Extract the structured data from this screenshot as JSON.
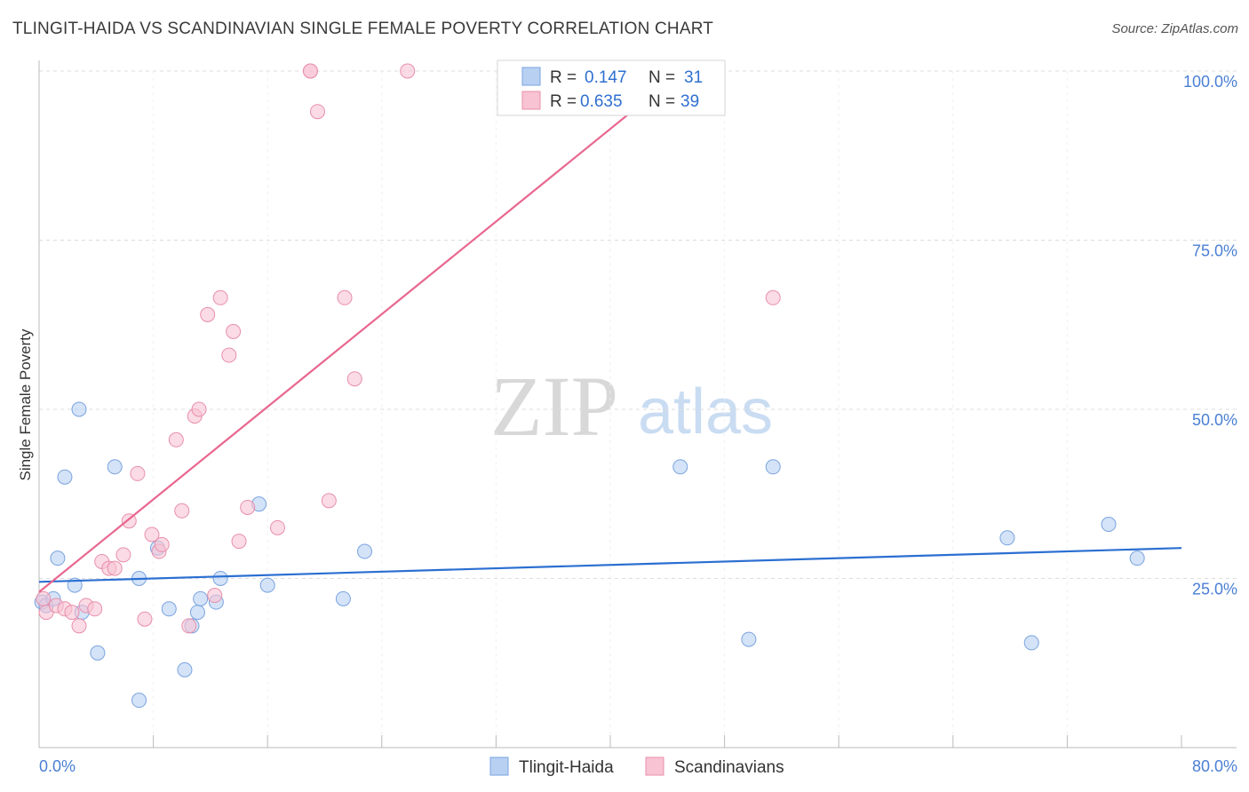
{
  "header": {
    "title": "TLINGIT-HAIDA VS SCANDINAVIAN SINGLE FEMALE POVERTY CORRELATION CHART",
    "source": "Source: ZipAtlas.com"
  },
  "watermark": {
    "zip": "ZIP",
    "atlas": "atlas"
  },
  "colors": {
    "blue_fill": "#b8d0f2",
    "blue_stroke": "#7aa3e0",
    "blue_line": "#2b6fd1",
    "pink_fill": "#f8c3d3",
    "pink_stroke": "#e88fab",
    "pink_line": "#e8678f",
    "grid": "#dddddd",
    "tick_text": "#4a7fd4"
  },
  "stats_legend": {
    "rows": [
      {
        "r_label": "R = ",
        "r_value": "0.147",
        "n_label": "N = ",
        "n_value": "31",
        "series": "blue"
      },
      {
        "r_label": "R = ",
        "r_value": "0.635",
        "n_label": "N = ",
        "n_value": "39",
        "series": "pink"
      }
    ]
  },
  "bottom_legend": {
    "items": [
      {
        "label": "Tlingit-Haida",
        "series": "blue"
      },
      {
        "label": "Scandinavians",
        "series": "pink"
      }
    ]
  },
  "chart_data": {
    "type": "scatter",
    "title": "TLINGIT-HAIDA VS SCANDINAVIAN SINGLE FEMALE POVERTY CORRELATION CHART",
    "xlabel": "",
    "ylabel": "Single Female Poverty",
    "xlim": [
      0,
      80
    ],
    "ylim": [
      0,
      105
    ],
    "x_tick_labels": [
      "0.0%",
      "80.0%"
    ],
    "y_ticks": [
      25,
      50,
      75,
      100
    ],
    "y_tick_labels": [
      "25.0%",
      "50.0%",
      "75.0%",
      "100.0%"
    ],
    "grid": true,
    "series": [
      {
        "name": "Tlingit-Haida",
        "color": "blue",
        "trend": {
          "x": [
            0,
            80
          ],
          "y": [
            24.5,
            29.5
          ]
        },
        "points": [
          {
            "x": 0.2,
            "y": 21.5
          },
          {
            "x": 0.5,
            "y": 21
          },
          {
            "x": 1.0,
            "y": 22
          },
          {
            "x": 1.3,
            "y": 28
          },
          {
            "x": 1.8,
            "y": 40
          },
          {
            "x": 2.5,
            "y": 24
          },
          {
            "x": 2.8,
            "y": 50
          },
          {
            "x": 3.0,
            "y": 20
          },
          {
            "x": 4.1,
            "y": 14
          },
          {
            "x": 5.3,
            "y": 41.5
          },
          {
            "x": 7.0,
            "y": 7
          },
          {
            "x": 7.0,
            "y": 25
          },
          {
            "x": 8.3,
            "y": 29.5
          },
          {
            "x": 9.1,
            "y": 20.5
          },
          {
            "x": 10.2,
            "y": 11.5
          },
          {
            "x": 10.7,
            "y": 18
          },
          {
            "x": 11.1,
            "y": 20
          },
          {
            "x": 11.3,
            "y": 22
          },
          {
            "x": 12.4,
            "y": 21.5
          },
          {
            "x": 12.7,
            "y": 25
          },
          {
            "x": 15.4,
            "y": 36
          },
          {
            "x": 16.0,
            "y": 24
          },
          {
            "x": 21.3,
            "y": 22
          },
          {
            "x": 22.8,
            "y": 29
          },
          {
            "x": 44.9,
            "y": 41.5
          },
          {
            "x": 49.7,
            "y": 16
          },
          {
            "x": 51.4,
            "y": 41.5
          },
          {
            "x": 67.8,
            "y": 31
          },
          {
            "x": 69.5,
            "y": 15.5
          },
          {
            "x": 74.9,
            "y": 33
          },
          {
            "x": 76.9,
            "y": 28
          }
        ]
      },
      {
        "name": "Scandinavians",
        "color": "pink",
        "trend": {
          "x": [
            0,
            45
          ],
          "y": [
            23,
            100
          ]
        },
        "points": [
          {
            "x": 0.3,
            "y": 22
          },
          {
            "x": 0.5,
            "y": 20
          },
          {
            "x": 1.2,
            "y": 21
          },
          {
            "x": 1.8,
            "y": 20.5
          },
          {
            "x": 2.3,
            "y": 20
          },
          {
            "x": 2.8,
            "y": 18
          },
          {
            "x": 3.3,
            "y": 21
          },
          {
            "x": 3.9,
            "y": 20.5
          },
          {
            "x": 4.4,
            "y": 27.5
          },
          {
            "x": 4.9,
            "y": 26.5
          },
          {
            "x": 5.3,
            "y": 26.5
          },
          {
            "x": 5.9,
            "y": 28.5
          },
          {
            "x": 6.3,
            "y": 33.5
          },
          {
            "x": 6.9,
            "y": 40.5
          },
          {
            "x": 7.4,
            "y": 19
          },
          {
            "x": 7.9,
            "y": 31.5
          },
          {
            "x": 8.4,
            "y": 29
          },
          {
            "x": 8.6,
            "y": 30
          },
          {
            "x": 9.6,
            "y": 45.5
          },
          {
            "x": 10.0,
            "y": 35
          },
          {
            "x": 10.5,
            "y": 18
          },
          {
            "x": 10.9,
            "y": 49
          },
          {
            "x": 11.2,
            "y": 50
          },
          {
            "x": 11.8,
            "y": 64
          },
          {
            "x": 12.3,
            "y": 22.5
          },
          {
            "x": 12.7,
            "y": 66.5
          },
          {
            "x": 13.3,
            "y": 58
          },
          {
            "x": 13.6,
            "y": 61.5
          },
          {
            "x": 14.0,
            "y": 30.5
          },
          {
            "x": 14.6,
            "y": 35.5
          },
          {
            "x": 16.7,
            "y": 32.5
          },
          {
            "x": 19.0,
            "y": 100
          },
          {
            "x": 19.0,
            "y": 100
          },
          {
            "x": 19.5,
            "y": 94
          },
          {
            "x": 20.3,
            "y": 36.5
          },
          {
            "x": 21.4,
            "y": 66.5
          },
          {
            "x": 22.1,
            "y": 54.5
          },
          {
            "x": 25.8,
            "y": 100
          },
          {
            "x": 51.4,
            "y": 66.5
          }
        ]
      }
    ]
  }
}
